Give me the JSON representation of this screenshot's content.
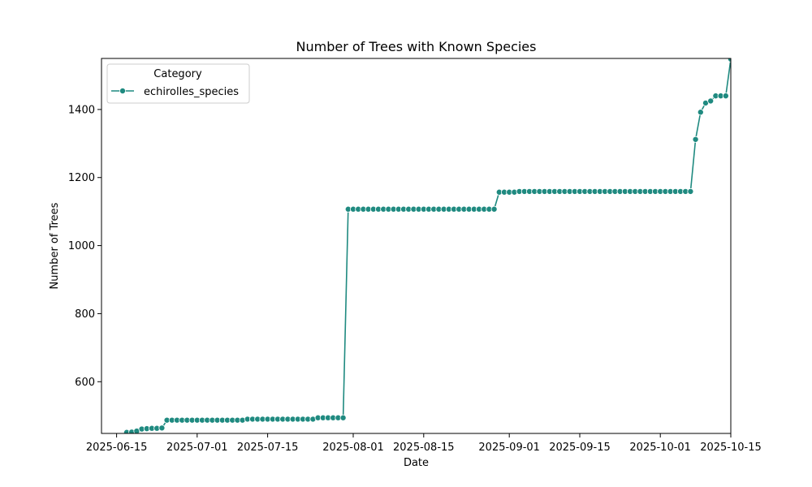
{
  "chart_data": {
    "type": "line",
    "title": "Number of Trees with Known Species",
    "xlabel": "Date",
    "ylabel": "Number of Trees",
    "xlim": [
      "2025-06-12",
      "2025-10-15"
    ],
    "ylim": [
      448,
      1550
    ],
    "x_ticks": [
      "2025-06-15",
      "2025-07-01",
      "2025-07-15",
      "2025-08-01",
      "2025-08-15",
      "2025-09-01",
      "2025-09-15",
      "2025-10-01",
      "2025-10-15"
    ],
    "y_ticks": [
      600,
      800,
      1000,
      1200,
      1400
    ],
    "grid": false,
    "legend": {
      "title": "Category",
      "placement": "top-left"
    },
    "series": [
      {
        "name": "echirolles_species",
        "color": "#1f8a80",
        "marker": "circle",
        "points": [
          [
            "2025-06-17",
            451
          ],
          [
            "2025-06-18",
            452
          ],
          [
            "2025-06-19",
            455
          ],
          [
            "2025-06-20",
            461
          ],
          [
            "2025-06-21",
            462
          ],
          [
            "2025-06-22",
            463
          ],
          [
            "2025-06-23",
            463
          ],
          [
            "2025-06-24",
            464
          ],
          [
            "2025-06-25",
            487
          ],
          [
            "2025-06-26",
            487
          ],
          [
            "2025-06-27",
            487
          ],
          [
            "2025-06-28",
            487
          ],
          [
            "2025-06-29",
            487
          ],
          [
            "2025-06-30",
            487
          ],
          [
            "2025-07-01",
            487
          ],
          [
            "2025-07-02",
            487
          ],
          [
            "2025-07-03",
            487
          ],
          [
            "2025-07-04",
            487
          ],
          [
            "2025-07-05",
            487
          ],
          [
            "2025-07-06",
            487
          ],
          [
            "2025-07-07",
            487
          ],
          [
            "2025-07-08",
            487
          ],
          [
            "2025-07-09",
            487
          ],
          [
            "2025-07-10",
            487
          ],
          [
            "2025-07-11",
            490
          ],
          [
            "2025-07-12",
            490
          ],
          [
            "2025-07-13",
            490
          ],
          [
            "2025-07-14",
            490
          ],
          [
            "2025-07-15",
            490
          ],
          [
            "2025-07-16",
            490
          ],
          [
            "2025-07-17",
            490
          ],
          [
            "2025-07-18",
            490
          ],
          [
            "2025-07-19",
            490
          ],
          [
            "2025-07-20",
            490
          ],
          [
            "2025-07-21",
            490
          ],
          [
            "2025-07-22",
            490
          ],
          [
            "2025-07-23",
            490
          ],
          [
            "2025-07-24",
            490
          ],
          [
            "2025-07-25",
            494
          ],
          [
            "2025-07-26",
            494
          ],
          [
            "2025-07-27",
            494
          ],
          [
            "2025-07-28",
            494
          ],
          [
            "2025-07-29",
            494
          ],
          [
            "2025-07-30",
            494
          ],
          [
            "2025-07-31",
            1107
          ],
          [
            "2025-08-01",
            1107
          ],
          [
            "2025-08-02",
            1107
          ],
          [
            "2025-08-03",
            1107
          ],
          [
            "2025-08-04",
            1107
          ],
          [
            "2025-08-05",
            1107
          ],
          [
            "2025-08-06",
            1107
          ],
          [
            "2025-08-07",
            1107
          ],
          [
            "2025-08-08",
            1107
          ],
          [
            "2025-08-09",
            1107
          ],
          [
            "2025-08-10",
            1107
          ],
          [
            "2025-08-11",
            1107
          ],
          [
            "2025-08-12",
            1107
          ],
          [
            "2025-08-13",
            1107
          ],
          [
            "2025-08-14",
            1107
          ],
          [
            "2025-08-15",
            1107
          ],
          [
            "2025-08-16",
            1107
          ],
          [
            "2025-08-17",
            1107
          ],
          [
            "2025-08-18",
            1107
          ],
          [
            "2025-08-19",
            1107
          ],
          [
            "2025-08-20",
            1107
          ],
          [
            "2025-08-21",
            1107
          ],
          [
            "2025-08-22",
            1107
          ],
          [
            "2025-08-23",
            1107
          ],
          [
            "2025-08-24",
            1107
          ],
          [
            "2025-08-25",
            1107
          ],
          [
            "2025-08-26",
            1107
          ],
          [
            "2025-08-27",
            1107
          ],
          [
            "2025-08-28",
            1107
          ],
          [
            "2025-08-29",
            1107
          ],
          [
            "2025-08-30",
            1157
          ],
          [
            "2025-08-31",
            1157
          ],
          [
            "2025-09-01",
            1157
          ],
          [
            "2025-09-02",
            1157
          ],
          [
            "2025-09-03",
            1159
          ],
          [
            "2025-09-04",
            1159
          ],
          [
            "2025-09-05",
            1159
          ],
          [
            "2025-09-06",
            1159
          ],
          [
            "2025-09-07",
            1159
          ],
          [
            "2025-09-08",
            1159
          ],
          [
            "2025-09-09",
            1159
          ],
          [
            "2025-09-10",
            1159
          ],
          [
            "2025-09-11",
            1159
          ],
          [
            "2025-09-12",
            1159
          ],
          [
            "2025-09-13",
            1159
          ],
          [
            "2025-09-14",
            1159
          ],
          [
            "2025-09-15",
            1159
          ],
          [
            "2025-09-16",
            1159
          ],
          [
            "2025-09-17",
            1159
          ],
          [
            "2025-09-18",
            1159
          ],
          [
            "2025-09-19",
            1159
          ],
          [
            "2025-09-20",
            1159
          ],
          [
            "2025-09-21",
            1159
          ],
          [
            "2025-09-22",
            1159
          ],
          [
            "2025-09-23",
            1159
          ],
          [
            "2025-09-24",
            1159
          ],
          [
            "2025-09-25",
            1159
          ],
          [
            "2025-09-26",
            1159
          ],
          [
            "2025-09-27",
            1159
          ],
          [
            "2025-09-28",
            1159
          ],
          [
            "2025-09-29",
            1159
          ],
          [
            "2025-09-30",
            1159
          ],
          [
            "2025-10-01",
            1159
          ],
          [
            "2025-10-02",
            1159
          ],
          [
            "2025-10-03",
            1159
          ],
          [
            "2025-10-04",
            1159
          ],
          [
            "2025-10-05",
            1159
          ],
          [
            "2025-10-06",
            1159
          ],
          [
            "2025-10-07",
            1159
          ],
          [
            "2025-10-08",
            1312
          ],
          [
            "2025-10-09",
            1392
          ],
          [
            "2025-10-10",
            1419
          ],
          [
            "2025-10-11",
            1425
          ],
          [
            "2025-10-12",
            1440
          ],
          [
            "2025-10-13",
            1440
          ],
          [
            "2025-10-14",
            1440
          ],
          [
            "2025-10-15",
            1548
          ]
        ]
      }
    ]
  }
}
